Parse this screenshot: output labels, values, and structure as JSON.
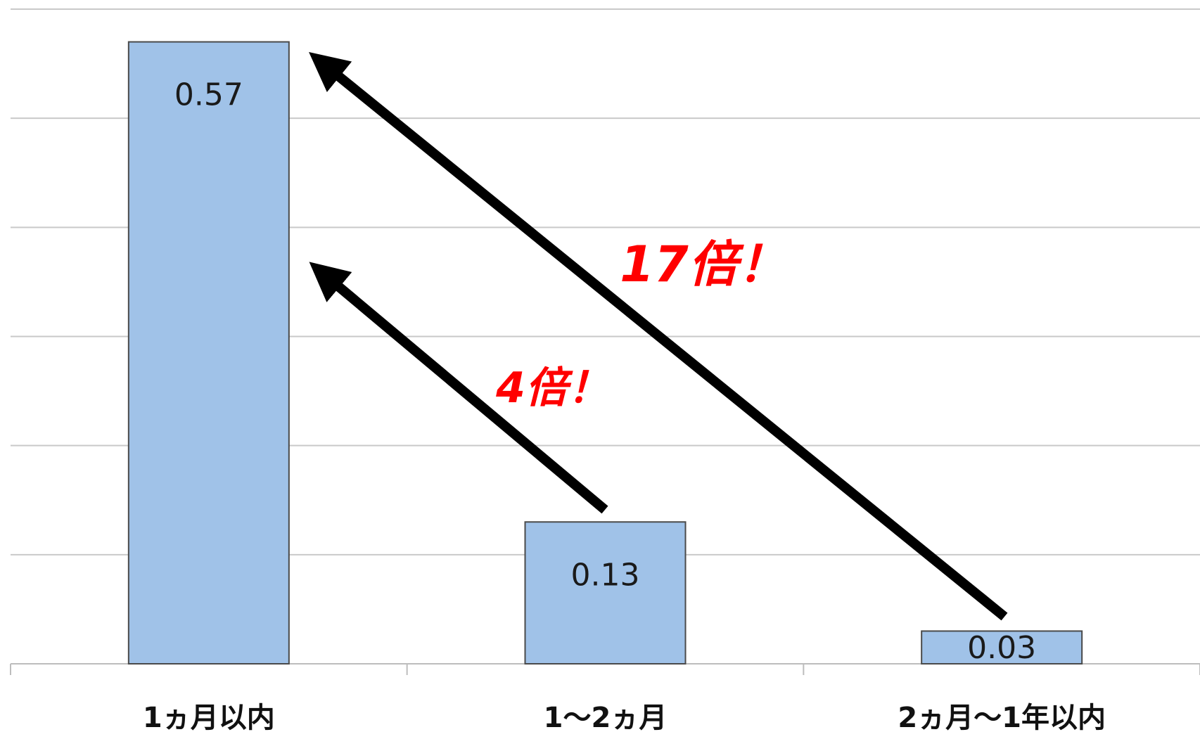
{
  "chart_data": {
    "type": "bar",
    "title": "",
    "xlabel": "",
    "ylabel": "",
    "categories": [
      "1ヵ月以内",
      "1〜2ヵ月",
      "2ヵ月〜1年以内"
    ],
    "values": [
      0.57,
      0.13,
      0.03
    ],
    "value_labels": [
      "0.57",
      "0.13",
      "0.03"
    ],
    "ylim": [
      0,
      0.6
    ],
    "y_gridlines": [
      0.1,
      0.2,
      0.3,
      0.4,
      0.5,
      0.6
    ],
    "y_tick_labels_shown": false,
    "grid": true,
    "legend": "none",
    "bar_color": "#a0c2e8",
    "annotations": [
      {
        "text": "17倍！",
        "from_category": 2,
        "to_category": 0,
        "color": "#ff0000"
      },
      {
        "text": "4倍！",
        "from_category": 1,
        "to_category": 0,
        "color": "#ff0000"
      }
    ]
  }
}
